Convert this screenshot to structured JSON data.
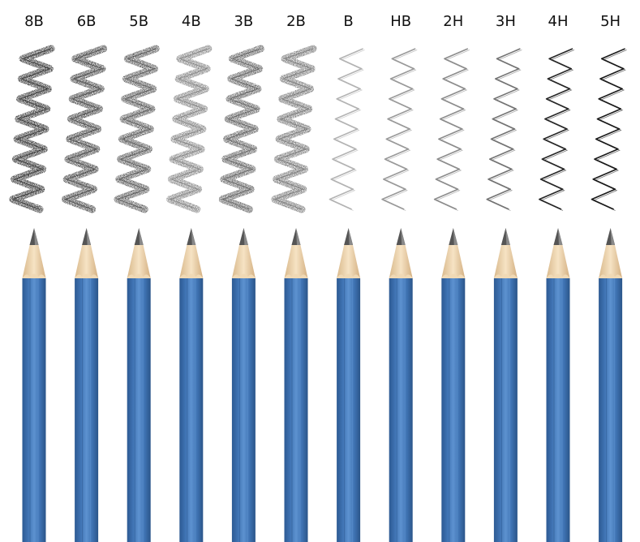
{
  "grades": [
    "8B",
    "6B",
    "5B",
    "4B",
    "3B",
    "2B",
    "B",
    "HB",
    "2H",
    "3H",
    "4H",
    "5H"
  ],
  "stroke_darkness": [
    0.9,
    0.82,
    0.74,
    0.55,
    0.7,
    0.6,
    0.3,
    0.4,
    0.45,
    0.55,
    0.85,
    0.9
  ],
  "stroke_texture": [
    "grainy",
    "grainy",
    "grainy",
    "grainy",
    "grainy",
    "grainy",
    "smooth",
    "smooth",
    "smooth",
    "smooth",
    "smooth",
    "smooth"
  ],
  "colors": {
    "pencil_body": "#3f73b3",
    "pencil_body_dark": "#2d5a93",
    "pencil_body_light": "#5d92d0",
    "wood": "#f0d9b5",
    "wood_shadow": "#d9b98c",
    "lead": "#555555",
    "background": "#ffffff"
  }
}
